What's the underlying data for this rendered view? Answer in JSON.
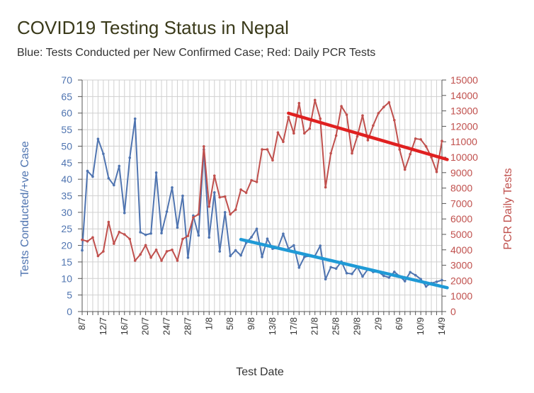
{
  "chart_data": {
    "type": "line",
    "title": "COVID19 Testing Status in Nepal",
    "subtitle": "Blue: Tests Conducted per New Confirmed Case; Red: Daily PCR Tests",
    "xlabel": "Test Date",
    "ylabel_left": "Tests Conducted/+ve Case",
    "ylabel_right": "PCR Daily Tests",
    "ylim_left": [
      0,
      70
    ],
    "ylim_right": [
      0,
      15000
    ],
    "yticks_left": [
      "0",
      "5",
      "10",
      "15",
      "20",
      "25",
      "30",
      "35",
      "40",
      "45",
      "50",
      "55",
      "60",
      "65",
      "70"
    ],
    "yticks_right": [
      "0",
      "1000",
      "2000",
      "3000",
      "4000",
      "5000",
      "6000",
      "7000",
      "8000",
      "9000",
      "10000",
      "11000",
      "12000",
      "13000",
      "14000",
      "15000"
    ],
    "x_tick_labels": [
      "8/7",
      "12/7",
      "16/7",
      "20/7",
      "24/7",
      "28/7",
      "1/8",
      "5/8",
      "9/8",
      "13/8",
      "17/8",
      "21/8",
      "25/8",
      "29/8",
      "2/9",
      "6/9",
      "10/9",
      "14/9"
    ],
    "grid": true,
    "series": [
      {
        "axis": "left",
        "color": "#4f74b0",
        "values": [
          18.5,
          42.5,
          40.8,
          52.2,
          47.7,
          40.3,
          38.2,
          44.0,
          29.8,
          46.5,
          58.3,
          24.0,
          23.2,
          23.6,
          42.0,
          23.7,
          30.2,
          37.5,
          25.4,
          35.0,
          16.3,
          29.0,
          23.0,
          49.0,
          22.4,
          36.0,
          18.2,
          30.0,
          16.8,
          18.5,
          17.0,
          20.8,
          22.5,
          25.0,
          16.5,
          22.0,
          19.0,
          19.2,
          23.5,
          19.0,
          20.0,
          13.3,
          16.5,
          16.8,
          16.8,
          19.9,
          9.8,
          13.4,
          13.0,
          15.1,
          11.6,
          11.4,
          13.5,
          10.6,
          12.8,
          12.0,
          12.0,
          10.8,
          10.3,
          12.0,
          10.7,
          9.2,
          11.9,
          11.0,
          9.8,
          7.6,
          8.6,
          9.0,
          9.5
        ]
      },
      {
        "axis": "right",
        "color": "#c0504d",
        "values": [
          4650,
          4550,
          4800,
          3600,
          3900,
          5800,
          4400,
          5150,
          5000,
          4700,
          3300,
          3700,
          4300,
          3500,
          4000,
          3300,
          3900,
          4000,
          3300,
          4700,
          4900,
          6100,
          6300,
          10700,
          6800,
          8800,
          7400,
          7450,
          6300,
          6600,
          7900,
          7700,
          8500,
          8400,
          10500,
          10500,
          9800,
          11600,
          11000,
          12600,
          11550,
          13500,
          11550,
          11850,
          13700,
          12500,
          8050,
          10250,
          11400,
          13300,
          12750,
          10250,
          11350,
          12700,
          11100,
          12050,
          12850,
          13250,
          13550,
          12400,
          10500,
          9200,
          10200,
          11200,
          11150,
          10700,
          10000,
          9050,
          11050
        ]
      }
    ],
    "trendlines": [
      {
        "series": 0,
        "color": "#1f9ad6",
        "x_range": [
          30,
          69
        ],
        "y_start": 21.8,
        "y_end": 7.2
      },
      {
        "series": 1,
        "color": "#e02020",
        "x_range": [
          39,
          69
        ],
        "y_start": 12850,
        "y_end": 9850
      }
    ]
  }
}
